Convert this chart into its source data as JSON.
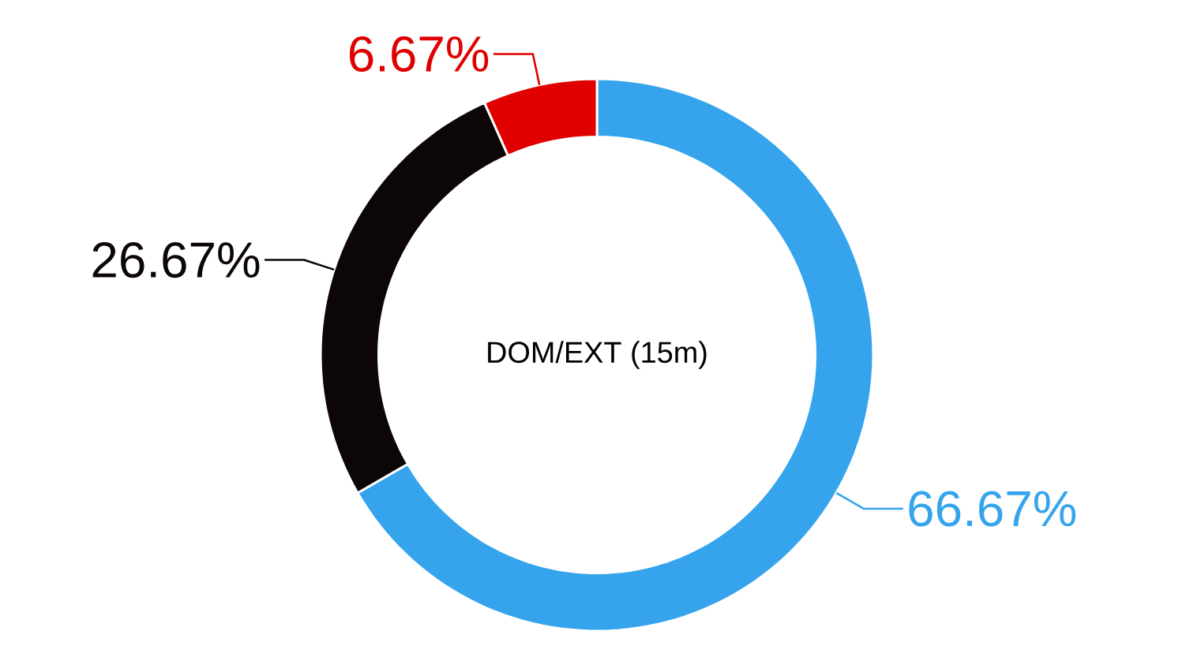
{
  "chart_data": {
    "type": "donut",
    "title": "DOM/EXT (15m)",
    "categories": [
      null,
      null,
      null
    ],
    "values": [
      66.67,
      26.67,
      6.67
    ],
    "colors": [
      "#35a4ec",
      "#0d0606",
      "#e00000"
    ],
    "value_labels": [
      "66.67%",
      "26.67%",
      "6.67%"
    ]
  }
}
